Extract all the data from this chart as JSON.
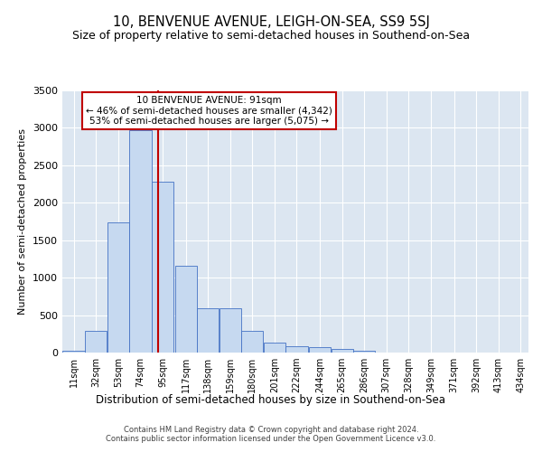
{
  "title": "10, BENVENUE AVENUE, LEIGH-ON-SEA, SS9 5SJ",
  "subtitle": "Size of property relative to semi-detached houses in Southend-on-Sea",
  "xlabel": "Distribution of semi-detached houses by size in Southend-on-Sea",
  "ylabel": "Number of semi-detached properties",
  "footer_line1": "Contains HM Land Registry data © Crown copyright and database right 2024.",
  "footer_line2": "Contains public sector information licensed under the Open Government Licence v3.0.",
  "annotation_title": "10 BENVENUE AVENUE: 91sqm",
  "annotation_line1": "← 46% of semi-detached houses are smaller (4,342)",
  "annotation_line2": "53% of semi-detached houses are larger (5,075) →",
  "bar_color": "#c6d9f0",
  "bar_edge_color": "#4472c4",
  "vline_color": "#c00000",
  "annotation_box_color": "#ffffff",
  "annotation_box_edge": "#c00000",
  "background_color": "#dce6f1",
  "categories": [
    "11sqm",
    "32sqm",
    "53sqm",
    "74sqm",
    "95sqm",
    "117sqm",
    "138sqm",
    "159sqm",
    "180sqm",
    "201sqm",
    "222sqm",
    "244sqm",
    "265sqm",
    "286sqm",
    "307sqm",
    "328sqm",
    "349sqm",
    "371sqm",
    "392sqm",
    "413sqm",
    "434sqm"
  ],
  "bin_centers": [
    11,
    32,
    53,
    74,
    95,
    117,
    138,
    159,
    180,
    201,
    222,
    244,
    265,
    286,
    307,
    328,
    349,
    371,
    392,
    413,
    434
  ],
  "bin_edges": [
    0,
    21.5,
    42.5,
    63.5,
    84.5,
    105.5,
    126.5,
    147.5,
    168.5,
    189.5,
    210.5,
    231.5,
    252.5,
    273.5,
    294.5,
    315.5,
    336.5,
    357.5,
    378.5,
    399.5,
    420.5,
    441.5
  ],
  "values": [
    30,
    290,
    1740,
    2970,
    2280,
    1160,
    590,
    590,
    295,
    130,
    80,
    70,
    50,
    30,
    0,
    0,
    0,
    0,
    0,
    0,
    0
  ],
  "ylim": [
    0,
    3500
  ],
  "yticks": [
    0,
    500,
    1000,
    1500,
    2000,
    2500,
    3000,
    3500
  ],
  "vline_x": 91,
  "title_fontsize": 10.5,
  "subtitle_fontsize": 9
}
